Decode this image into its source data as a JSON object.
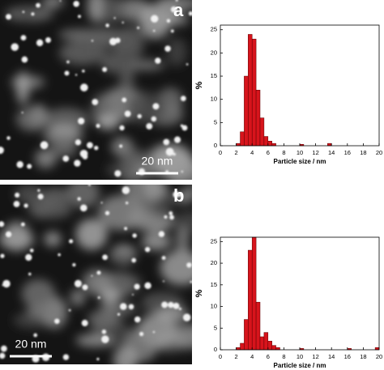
{
  "chart_data": [
    {
      "type": "histogram",
      "image_label": "a",
      "scale_bar_label": "20 nm",
      "xlabel": "Particle size / nm",
      "ylabel": "%",
      "bins": [
        2.0,
        2.5,
        3.0,
        3.5,
        4.0,
        4.5,
        5.0,
        5.5,
        6.0,
        6.5,
        7.0,
        7.5,
        8.0,
        8.5,
        9.0,
        9.5,
        10.0,
        10.5,
        11.0,
        11.5,
        12.0,
        12.5,
        13.0,
        13.5,
        14.0
      ],
      "values": [
        0.5,
        3,
        15,
        24,
        23,
        12,
        6,
        2,
        1,
        0.5,
        0,
        0,
        0,
        0,
        0,
        0,
        0.3,
        0,
        0,
        0,
        0,
        0,
        0,
        0.5
      ],
      "color": "#d7141c",
      "xlim": [
        0,
        20
      ],
      "xticks": [
        0,
        2,
        4,
        6,
        8,
        10,
        12,
        14,
        16,
        18,
        20
      ],
      "ylim": [
        0,
        26
      ],
      "yticks": [
        0,
        5,
        10,
        15,
        20,
        25
      ]
    },
    {
      "type": "histogram",
      "image_label": "b",
      "scale_bar_label": "20 nm",
      "xlabel": "Particle size / nm",
      "ylabel": "%",
      "bins": [
        2.0,
        2.5,
        3.0,
        3.5,
        4.0,
        4.5,
        5.0,
        5.5,
        6.0,
        6.5,
        7.0,
        7.5,
        8.0,
        8.5,
        9.0,
        9.5,
        10.0,
        10.5,
        11.0,
        11.5,
        12.0,
        12.5,
        13.0,
        13.5,
        14.0,
        14.5,
        15.0,
        15.5,
        16.0,
        16.5,
        17.0,
        17.5,
        18.0,
        18.5,
        19.0,
        19.5,
        20.0
      ],
      "values": [
        0.5,
        1.5,
        7,
        23,
        26,
        11,
        3,
        4,
        2,
        1,
        0.5,
        0,
        0,
        0,
        0,
        0,
        0.3,
        0,
        0,
        0,
        0,
        0,
        0,
        0,
        0,
        0,
        0,
        0,
        0.3,
        0,
        0,
        0,
        0,
        0,
        0,
        0.5
      ],
      "color": "#d7141c",
      "xlim": [
        0,
        20
      ],
      "xticks": [
        0,
        2,
        4,
        6,
        8,
        10,
        12,
        14,
        16,
        18,
        20
      ],
      "ylim": [
        0,
        26
      ],
      "yticks": [
        0,
        5,
        10,
        15,
        20,
        25
      ]
    }
  ]
}
